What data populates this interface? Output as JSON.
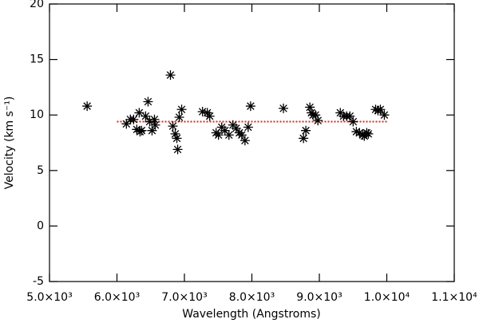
{
  "chart_data": {
    "type": "scatter",
    "x_label": "Wavelength (Angstroms)",
    "y_label": "Velocity (km s⁻¹)",
    "x": [
      5558,
      6140,
      6199,
      6247,
      6294,
      6342,
      6330,
      6366,
      6425,
      6461,
      6485,
      6520,
      6556,
      6568,
      6793,
      6829,
      6864,
      6888,
      6900,
      6924,
      6959,
      7268,
      7339,
      7375,
      7470,
      7505,
      7553,
      7600,
      7660,
      7719,
      7767,
      7814,
      7850,
      7898,
      7945,
      7981,
      8468,
      8765,
      8800,
      8860,
      8883,
      8907,
      8943,
      8979,
      9311,
      9359,
      9406,
      9453,
      9501,
      9549,
      9596,
      9644,
      9667,
      9703,
      9727,
      9834,
      9869,
      9905,
      9964
    ],
    "values": [
      10.8,
      9.2,
      9.6,
      9.6,
      8.7,
      8.5,
      10.2,
      8.6,
      9.9,
      11.2,
      9.4,
      8.6,
      9.6,
      9.1,
      13.6,
      9.0,
      8.3,
      7.9,
      6.9,
      9.8,
      10.5,
      10.3,
      10.2,
      9.9,
      8.4,
      8.2,
      8.9,
      8.6,
      8.2,
      9.1,
      8.8,
      8.4,
      8.2,
      7.7,
      8.9,
      10.8,
      10.6,
      7.9,
      8.6,
      10.7,
      10.2,
      10.0,
      10.0,
      9.5,
      10.2,
      9.9,
      9.9,
      9.9,
      9.4,
      8.5,
      8.4,
      8.2,
      8.1,
      8.4,
      8.3,
      10.5,
      10.4,
      10.5,
      10.0
    ],
    "color": "#000000",
    "fit_line": {
      "x": [
        6000,
        10000
      ],
      "values": [
        9.4,
        9.4
      ],
      "color": "#d62a1e"
    },
    "xlim": [
      5000,
      11000
    ],
    "xticks": [
      {
        "value": 5000,
        "label": "5.0×10³"
      },
      {
        "value": 6000,
        "label": "6.0×10³"
      },
      {
        "value": 7000,
        "label": "7.0×10³"
      },
      {
        "value": 8000,
        "label": "8.0×10³"
      },
      {
        "value": 9000,
        "label": "9.0×10³"
      },
      {
        "value": 10000,
        "label": "1.0×10⁴"
      },
      {
        "value": 11000,
        "label": "1.1×10⁴"
      }
    ],
    "ylim": [
      -5,
      20
    ],
    "yticks": [
      -5,
      0,
      5,
      10,
      15,
      20
    ]
  }
}
